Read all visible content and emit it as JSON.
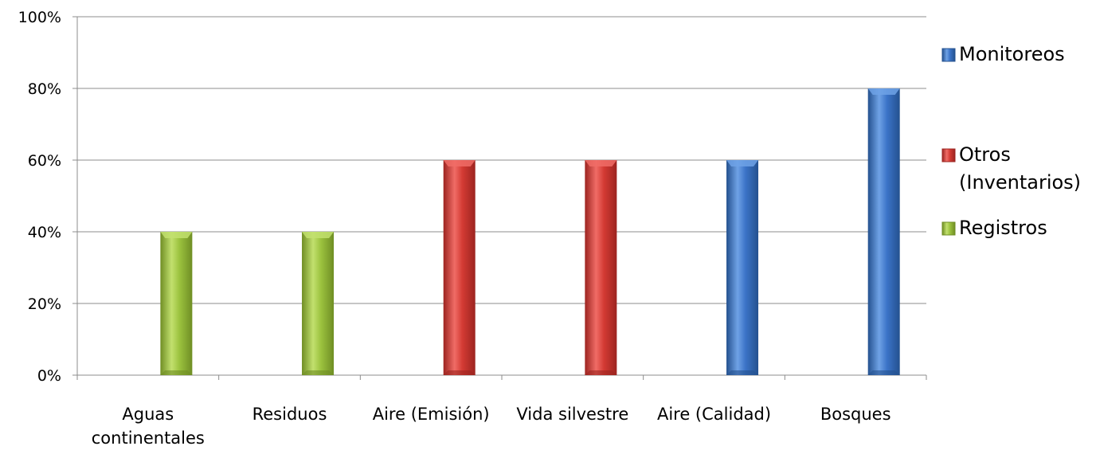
{
  "chart_data": {
    "type": "bar",
    "title": "",
    "xlabel": "",
    "ylabel": "",
    "categories": [
      "Aguas continentales",
      "Residuos",
      "Aire (Emisión)",
      "Vida silvestre",
      "Aire (Calidad)",
      "Bosques"
    ],
    "category_lines": [
      [
        "Aguas",
        "continentales"
      ],
      [
        "Residuos"
      ],
      [
        "Aire (Emisión)"
      ],
      [
        "Vida silvestre"
      ],
      [
        "Aire (Calidad)"
      ],
      [
        "Bosques"
      ]
    ],
    "values": [
      40,
      40,
      60,
      60,
      60,
      80
    ],
    "bar_series": [
      "Registros",
      "Registros",
      "Otros (Inventarios)",
      "Otros (Inventarios)",
      "Monitoreos",
      "Monitoreos"
    ],
    "series": [
      {
        "name": "Monitoreos",
        "legend_lines": [
          "Monitoreos"
        ],
        "color": "#3b73c7",
        "light": "#6fa2e6",
        "dark": "#24518f"
      },
      {
        "name": "Otros (Inventarios)",
        "legend_lines": [
          "Otros",
          "(Inventarios)"
        ],
        "color": "#d33a33",
        "light": "#f06c66",
        "dark": "#9c2420"
      },
      {
        "name": "Registros",
        "legend_lines": [
          "Registros"
        ],
        "color": "#9bc23e",
        "light": "#c2e06e",
        "dark": "#6f8e24"
      }
    ],
    "ylim": [
      0,
      100
    ],
    "yticks": [
      0,
      20,
      40,
      60,
      80,
      100
    ],
    "ytick_labels": [
      "0%",
      "20%",
      "40%",
      "60%",
      "80%",
      "100%"
    ],
    "grid": true,
    "legend_position": "right"
  }
}
